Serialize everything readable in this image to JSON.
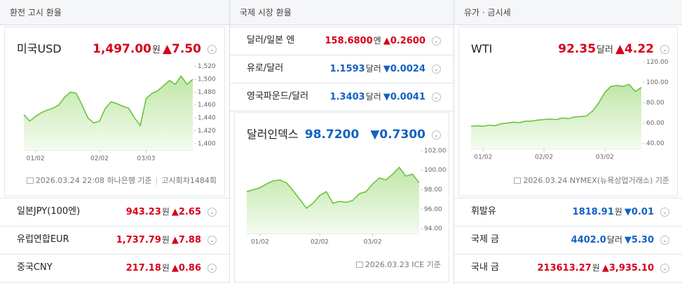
{
  "panels": [
    {
      "title": "환전 고시 환율",
      "main": {
        "name": "미국USD",
        "price": "1,497.00",
        "unit": "원",
        "change": "▲7.50",
        "color": "#d6001c"
      },
      "chart": {
        "type": "area",
        "color": "#6cc23f",
        "categories": [
          null,
          null,
          "01/02",
          null,
          null,
          null,
          null,
          null,
          null,
          null,
          null,
          null,
          null,
          "02/02",
          null,
          null,
          null,
          null,
          null,
          null,
          null,
          "03/03",
          null,
          null,
          null,
          null,
          null,
          null,
          null,
          null
        ],
        "values": [
          1445,
          1435,
          1442,
          1448,
          1452,
          1455,
          1460,
          1472,
          1480,
          1478,
          1460,
          1440,
          1432,
          1435,
          1455,
          1465,
          1462,
          1458,
          1455,
          1440,
          1428,
          1470,
          1478,
          1482,
          1490,
          1498,
          1492,
          1505,
          1492,
          1500
        ],
        "ylim": [
          1390,
          1525
        ],
        "yticks": [
          {
            "value": 1400,
            "label": "1,400"
          },
          {
            "value": 1420,
            "label": "1,420"
          },
          {
            "value": 1440,
            "label": "1,440"
          },
          {
            "value": 1460,
            "label": "1,460"
          },
          {
            "value": 1480,
            "label": "1,480"
          },
          {
            "value": 1500,
            "label": "1,500"
          },
          {
            "value": 1520,
            "label": "1,520"
          }
        ]
      },
      "note": "2026.03.24 22:08 하나은행 기준",
      "note2": "고시회차1484회",
      "items": [
        {
          "name": "일본JPY(100엔)",
          "price": "943.23",
          "unit": "원",
          "change": "▲2.65",
          "color": "#d6001c"
        },
        {
          "name": "유럽연합EUR",
          "price": "1,737.79",
          "unit": "원",
          "change": "▲7.88",
          "color": "#d6001c"
        },
        {
          "name": "중국CNY",
          "price": "217.18",
          "unit": "원",
          "change": "▲0.86",
          "color": "#d6001c"
        }
      ]
    },
    {
      "title": "국제 시장 환율",
      "items": [
        {
          "name": "달러/일본 엔",
          "price": "158.6800",
          "unit": "엔",
          "change": "▲0.2600",
          "color": "#d6001c"
        },
        {
          "name": "유로/달러",
          "price": "1.1593",
          "unit": "달러",
          "change": "▼0.0024",
          "color": "#1261c4"
        },
        {
          "name": "영국파운드/달러",
          "price": "1.3403",
          "unit": "달러",
          "change": "▼0.0041",
          "color": "#1261c4"
        }
      ],
      "main": {
        "name": "달러인덱스",
        "price": "98.7200",
        "change": "▼0.7300",
        "color": "#1261c4"
      },
      "chart": {
        "type": "area",
        "color": "#6cc23f",
        "categories": [
          null,
          null,
          "01/02",
          null,
          null,
          null,
          null,
          null,
          null,
          null,
          null,
          "02/02",
          null,
          null,
          null,
          null,
          null,
          null,
          null,
          "03/02",
          null,
          null,
          null,
          null,
          null,
          null,
          null
        ],
        "values": [
          97.8,
          98.0,
          98.2,
          98.6,
          98.9,
          99.0,
          98.7,
          97.9,
          97.0,
          96.1,
          96.6,
          97.4,
          97.8,
          96.6,
          96.8,
          96.7,
          96.9,
          97.6,
          97.8,
          98.6,
          99.2,
          99.0,
          99.6,
          100.3,
          99.4,
          99.6,
          98.7
        ],
        "ylim": [
          93.5,
          102.5
        ],
        "yticks": [
          {
            "value": 94,
            "label": "94.00"
          },
          {
            "value": 96,
            "label": "96.00"
          },
          {
            "value": 98,
            "label": "98.00"
          },
          {
            "value": 100,
            "label": "100.00"
          },
          {
            "value": 102,
            "label": "102.00"
          }
        ]
      },
      "note": "2026.03.23 ICE 기준"
    },
    {
      "title": "유가 · 금시세",
      "main": {
        "name": "WTI",
        "price": "92.35",
        "unit": "달러",
        "change": "▲4.22",
        "color": "#d6001c"
      },
      "chart": {
        "type": "area",
        "color": "#6cc23f",
        "categories": [
          null,
          null,
          "01/02",
          null,
          null,
          null,
          null,
          null,
          null,
          null,
          null,
          null,
          "02/02",
          null,
          null,
          null,
          null,
          null,
          null,
          null,
          null,
          null,
          "03/02",
          null,
          null,
          null,
          null,
          null,
          null
        ],
        "values": [
          57,
          57.5,
          57,
          58,
          57.5,
          59.5,
          60,
          61,
          60.5,
          62,
          62,
          63,
          63.5,
          64,
          63.5,
          65,
          64.5,
          66,
          66.5,
          67,
          72,
          80,
          90,
          96,
          97,
          96,
          98,
          91,
          95
        ],
        "ylim": [
          35,
          125
        ],
        "yticks": [
          {
            "value": 40,
            "label": "40.00"
          },
          {
            "value": 60,
            "label": "60.00"
          },
          {
            "value": 80,
            "label": "80.00"
          },
          {
            "value": 100,
            "label": "100.00"
          },
          {
            "value": 120,
            "label": "120.00"
          }
        ]
      },
      "note": "2026.03.24 NYMEX(뉴욕상업거래소) 기준",
      "items": [
        {
          "name": "휘발유",
          "price": "1818.91",
          "unit": "원",
          "change": "▼0.01",
          "color": "#1261c4"
        },
        {
          "name": "국제 금",
          "price": "4402.0",
          "unit": "달러",
          "change": "▼5.30",
          "color": "#1261c4"
        },
        {
          "name": "국내 금",
          "price": "213613.27",
          "unit": "원",
          "change": "▲3,935.10",
          "color": "#d6001c"
        }
      ]
    }
  ]
}
